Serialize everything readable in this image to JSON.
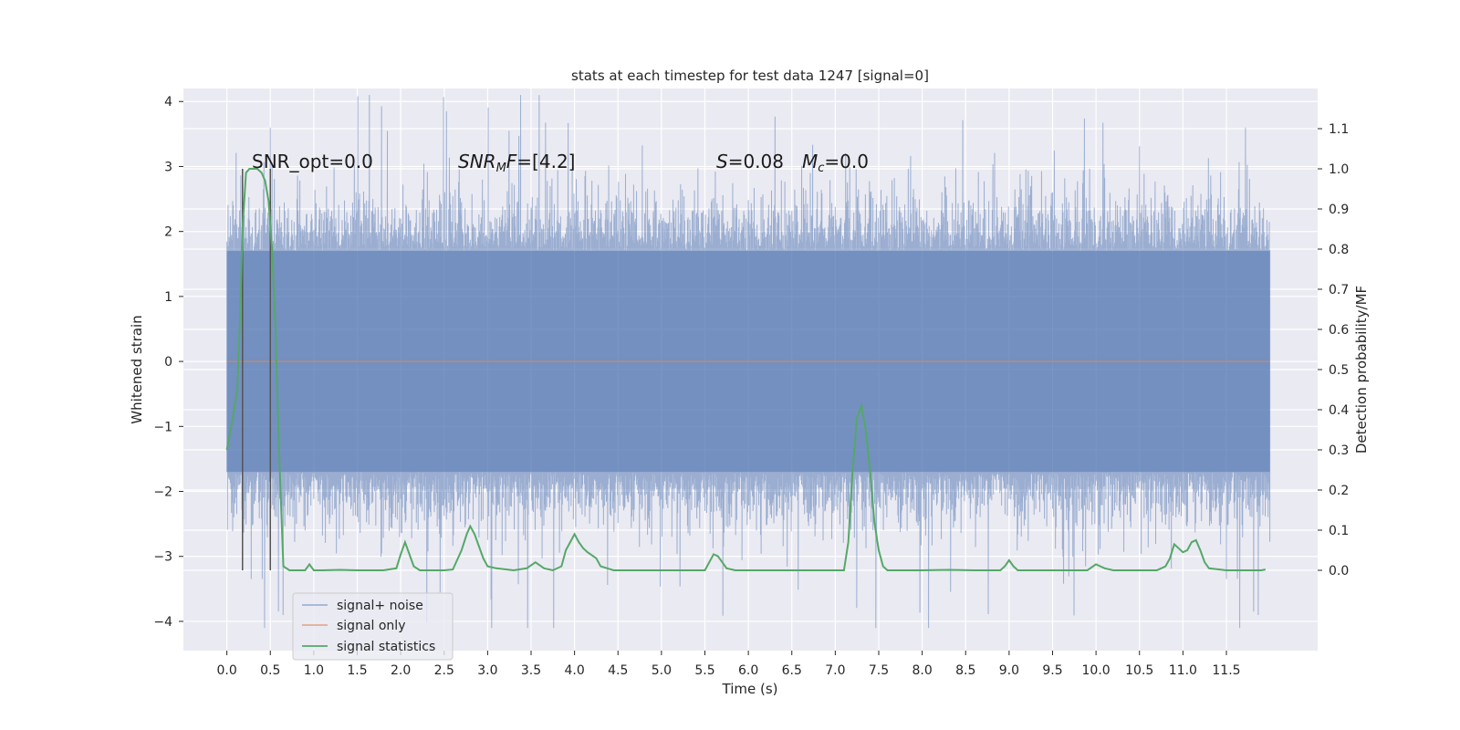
{
  "chart_data": {
    "type": "line",
    "title": "stats at each timestep for test data 1247 [signal=0]",
    "xlabel": "Time (s)",
    "ylabel": "Whitened strain",
    "y2label": "Detection probability/MF",
    "xlim": [
      -0.5,
      12.55
    ],
    "ylim": [
      -4.45,
      4.2
    ],
    "y2lim": [
      -0.2,
      1.2
    ],
    "x_ticks": [
      0.0,
      0.5,
      1.0,
      1.5,
      2.0,
      2.5,
      3.0,
      3.5,
      4.0,
      4.5,
      5.0,
      5.5,
      6.0,
      6.5,
      7.0,
      7.5,
      8.0,
      8.5,
      9.0,
      9.5,
      10.0,
      10.5,
      11.0,
      11.5
    ],
    "x_tick_labels": [
      "0.0",
      "0.5",
      "1.0",
      "1.5",
      "2.0",
      "2.5",
      "3.0",
      "3.5",
      "4.0",
      "4.5",
      "5.0",
      "5.5",
      "6.0",
      "6.5",
      "7.0",
      "7.5",
      "8.0",
      "8.5",
      "9.0",
      "9.5",
      "10.0",
      "10.5",
      "11.0",
      "11.5"
    ],
    "y_ticks": [
      -4,
      -3,
      -2,
      -1,
      0,
      1,
      2,
      3,
      4
    ],
    "y_tick_labels": [
      "−4",
      "−3",
      "−2",
      "−1",
      "0",
      "1",
      "2",
      "3",
      "4"
    ],
    "y2_ticks": [
      0.0,
      0.1,
      0.2,
      0.3,
      0.4,
      0.5,
      0.6,
      0.7,
      0.8,
      0.9,
      1.0,
      1.1
    ],
    "y2_tick_labels": [
      "0.0",
      "0.1",
      "0.2",
      "0.3",
      "0.4",
      "0.5",
      "0.6",
      "0.7",
      "0.8",
      "0.9",
      "1.0",
      "1.1"
    ],
    "grid": true,
    "legend_position": "bottom-left",
    "annotations": [
      {
        "id": "snr-opt",
        "text": "SNR_opt=0.0",
        "x": 0.2,
        "y": 3.0
      },
      {
        "id": "snr-mf",
        "text": "SNR_MF=[4.2]",
        "x": 2.6,
        "y": 3.0
      },
      {
        "id": "s-stat",
        "text": "S=0.08",
        "x": 5.6,
        "y": 3.0
      },
      {
        "id": "mc-stat",
        "text": "M_c=0.0",
        "x": 6.6,
        "y": 3.0
      }
    ],
    "vertical_lines": [
      0.18,
      0.5
    ],
    "series": [
      {
        "name": "signal+ noise",
        "color": "#4c72b0",
        "kind": "noise",
        "x_range": [
          0.0,
          12.0
        ],
        "envelope": 1.7,
        "max_abs": 4.1
      },
      {
        "name": "signal only",
        "color": "#dd8452",
        "kind": "constant",
        "x": [
          0.0,
          12.0
        ],
        "y": [
          0.0,
          0.0
        ]
      },
      {
        "name": "signal statistics",
        "color": "#55a868",
        "axis": "right",
        "x": [
          0.0,
          0.06,
          0.12,
          0.15,
          0.18,
          0.22,
          0.26,
          0.3,
          0.35,
          0.4,
          0.44,
          0.48,
          0.52,
          0.56,
          0.6,
          0.65,
          0.72,
          0.8,
          0.9,
          0.95,
          1.0,
          1.1,
          1.3,
          1.5,
          1.8,
          1.95,
          2.0,
          2.05,
          2.1,
          2.15,
          2.22,
          2.3,
          2.4,
          2.5,
          2.6,
          2.7,
          2.76,
          2.8,
          2.85,
          2.9,
          2.95,
          3.0,
          3.1,
          3.3,
          3.45,
          3.55,
          3.65,
          3.75,
          3.85,
          3.9,
          4.0,
          4.05,
          4.1,
          4.15,
          4.25,
          4.3,
          4.45,
          4.6,
          4.8,
          5.0,
          5.2,
          5.4,
          5.5,
          5.55,
          5.6,
          5.65,
          5.7,
          5.75,
          5.85,
          6.0,
          6.5,
          6.8,
          7.0,
          7.1,
          7.15,
          7.2,
          7.25,
          7.3,
          7.35,
          7.4,
          7.45,
          7.5,
          7.55,
          7.6,
          7.7,
          8.0,
          8.3,
          8.6,
          8.9,
          8.95,
          9.0,
          9.05,
          9.1,
          9.2,
          9.5,
          9.9,
          10.0,
          10.05,
          10.1,
          10.2,
          10.4,
          10.7,
          10.8,
          10.85,
          10.9,
          10.95,
          11.0,
          11.05,
          11.1,
          11.15,
          11.2,
          11.25,
          11.3,
          11.5,
          11.7,
          11.9,
          11.95
        ],
        "y": [
          0.3,
          0.37,
          0.45,
          0.62,
          0.85,
          0.99,
          1.0,
          1.0,
          1.0,
          0.99,
          0.97,
          0.92,
          0.8,
          0.6,
          0.3,
          0.01,
          0.0,
          0.0,
          0.0,
          0.015,
          0.0,
          0.0,
          0.001,
          0.0,
          0.0,
          0.005,
          0.04,
          0.07,
          0.04,
          0.01,
          0.0,
          0.0,
          0.0,
          0.0,
          0.002,
          0.05,
          0.09,
          0.11,
          0.09,
          0.06,
          0.03,
          0.01,
          0.005,
          0.0,
          0.005,
          0.02,
          0.005,
          0.0,
          0.01,
          0.05,
          0.09,
          0.07,
          0.055,
          0.045,
          0.03,
          0.01,
          0.0,
          0.0,
          0.0,
          0.0,
          0.0,
          0.0,
          0.0,
          0.02,
          0.04,
          0.035,
          0.02,
          0.005,
          0.0,
          0.0,
          0.0,
          0.0,
          0.0,
          0.0,
          0.07,
          0.25,
          0.38,
          0.41,
          0.35,
          0.25,
          0.12,
          0.05,
          0.01,
          0.0,
          0.0,
          0.0,
          0.001,
          0.0,
          0.0,
          0.01,
          0.025,
          0.01,
          0.0,
          0.0,
          0.0,
          0.0,
          0.015,
          0.01,
          0.005,
          0.0,
          0.0,
          0.0,
          0.01,
          0.03,
          0.065,
          0.055,
          0.045,
          0.05,
          0.07,
          0.075,
          0.05,
          0.02,
          0.005,
          0.0,
          0.0,
          0.0,
          0.002
        ]
      }
    ]
  }
}
